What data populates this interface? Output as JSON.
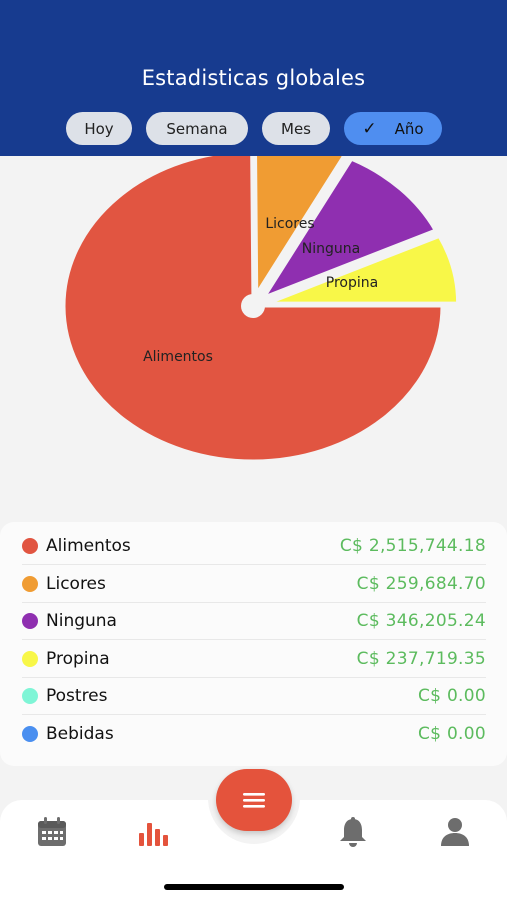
{
  "header": {
    "title": "Estadisticas globales",
    "filters": [
      {
        "label": "Hoy",
        "selected": false
      },
      {
        "label": "Semana",
        "selected": false
      },
      {
        "label": "Mes",
        "selected": false
      },
      {
        "label": "Año",
        "selected": true
      }
    ]
  },
  "chart_data": {
    "type": "pie",
    "title": "",
    "slices": [
      {
        "label": "Alimentos",
        "value": 2515744.18,
        "color": "#e15541"
      },
      {
        "label": "Licores",
        "value": 259684.7,
        "color": "#f09c33"
      },
      {
        "label": "Ninguna",
        "value": 346205.24,
        "color": "#8f2fb0"
      },
      {
        "label": "Propina",
        "value": 237719.35,
        "color": "#f8f748"
      }
    ],
    "exploded": true
  },
  "legend": {
    "items": [
      {
        "label": "Alimentos",
        "amount": "C$ 2,515,744.18",
        "color": "#e15541"
      },
      {
        "label": "Licores",
        "amount": "C$ 259,684.70",
        "color": "#f09c33"
      },
      {
        "label": "Ninguna",
        "amount": "C$ 346,205.24",
        "color": "#8f2fb0"
      },
      {
        "label": "Propina",
        "amount": "C$ 237,719.35",
        "color": "#f8f748"
      },
      {
        "label": "Postres",
        "amount": "C$ 0.00",
        "color": "#7ff5d6"
      },
      {
        "label": "Bebidas",
        "amount": "C$ 0.00",
        "color": "#4a8ff0"
      }
    ]
  },
  "tabbar": {
    "tabs": [
      {
        "icon": "calendar-icon",
        "active": false
      },
      {
        "icon": "bar-chart-icon",
        "active": true
      },
      {
        "icon": "bell-icon",
        "active": false
      },
      {
        "icon": "person-icon",
        "active": false
      }
    ],
    "fab_icon": "menu-icon",
    "accent": "#e4533c",
    "inactive": "#6d6d6d"
  }
}
